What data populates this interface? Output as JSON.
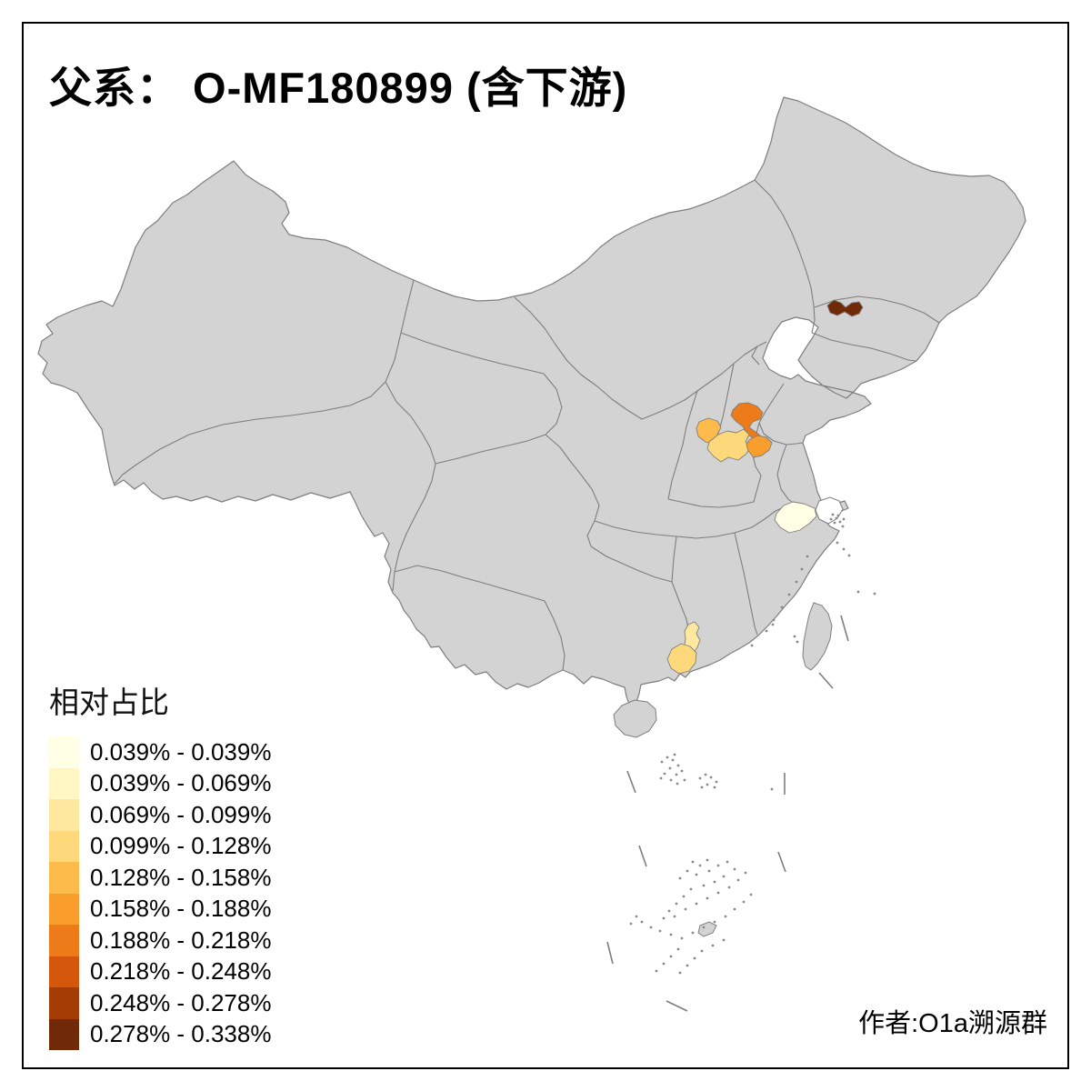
{
  "title": "父系： O-MF180899 (含下游)",
  "author_credit": "作者:O1a溯源群",
  "legend": {
    "title": "相对占比",
    "items": [
      {
        "range": "0.039% - 0.039%",
        "color": "#FFFFE5"
      },
      {
        "range": "0.039% - 0.069%",
        "color": "#FFF6C3"
      },
      {
        "range": "0.069% - 0.099%",
        "color": "#FEE8A0"
      },
      {
        "range": "0.099% - 0.128%",
        "color": "#FED97B"
      },
      {
        "range": "0.128% - 0.158%",
        "color": "#FDBB4B"
      },
      {
        "range": "0.158% - 0.188%",
        "color": "#F99E2D"
      },
      {
        "range": "0.188% - 0.218%",
        "color": "#EE7B19"
      },
      {
        "range": "0.218% - 0.248%",
        "color": "#D4570C"
      },
      {
        "range": "0.248% - 0.278%",
        "color": "#A53C05"
      },
      {
        "range": "0.278% - 0.338%",
        "color": "#702A07"
      }
    ]
  },
  "map": {
    "land_fill": "#D3D3D3",
    "border_color": "#7E7E7E",
    "sea_fill": "#FFFFFF",
    "frame_color": "#000000",
    "highlighted_regions": [
      {
        "id": "jilin-southeast-prefecture",
        "bin": 10
      },
      {
        "id": "henan-zhengzhou-area",
        "bin": 7
      },
      {
        "id": "henan-west-area",
        "bin": 5
      },
      {
        "id": "henan-central-area",
        "bin": 4
      },
      {
        "id": "henan-east-area",
        "bin": 6
      },
      {
        "id": "zhejiang-north-area",
        "bin": 1
      },
      {
        "id": "guangdong-north-area",
        "bin": 3
      },
      {
        "id": "guangdong-southwest-area",
        "bin": 4
      }
    ]
  }
}
